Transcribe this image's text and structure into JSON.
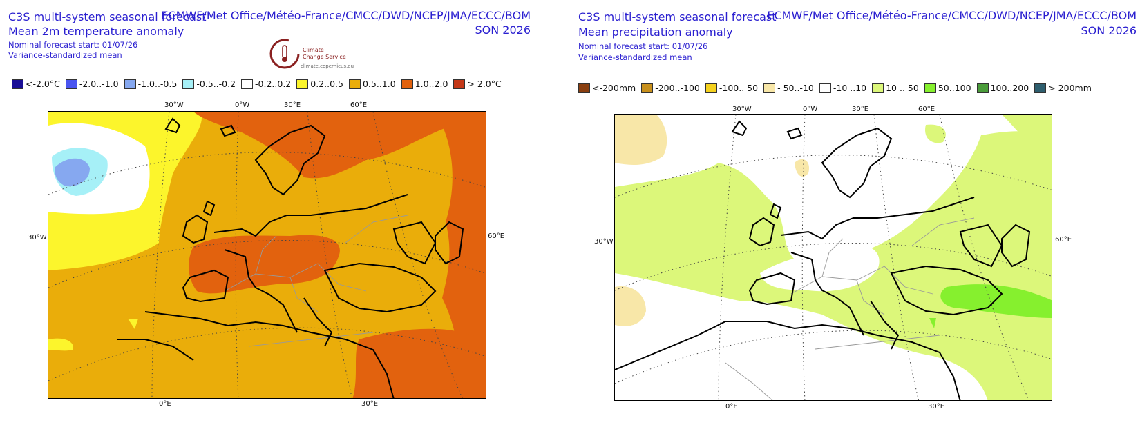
{
  "left": {
    "title_line1": "C3S multi-system seasonal forecast",
    "title_line2": "Mean 2m temperature anomaly",
    "start": "Nominal forecast start: 01/07/26",
    "method": "Variance-standardized mean",
    "providers": "ECMWF/Met Office/Météo-France/CMCC/DWD/NCEP/JMA/ECCC/BOM",
    "season": "SON 2026",
    "logo_line1": "Climate",
    "logo_line2": "Change Service",
    "logo_url": "climate.copernicus.eu",
    "legend": [
      {
        "label": "<-2.0°C",
        "color": "#1a0f96"
      },
      {
        "label": "-2.0..-1.0",
        "color": "#4a55f0"
      },
      {
        "label": "-1.0..-0.5",
        "color": "#86a8f0"
      },
      {
        "label": "-0.5..-0.2",
        "color": "#a6f0f7"
      },
      {
        "label": "-0.2..0.2",
        "color": "#ffffff"
      },
      {
        "label": "0.2..0.5",
        "color": "#fcf52c"
      },
      {
        "label": "0.5..1.0",
        "color": "#eaad0a"
      },
      {
        "label": "1.0..2.0",
        "color": "#e2620e"
      },
      {
        "label": "> 2.0°C",
        "color": "#c43818"
      }
    ],
    "lon_top": [
      "30°W",
      "0°W",
      "30°E",
      "60°E"
    ],
    "lon_bottom": [
      "0°E",
      "30°E"
    ],
    "lat_left": "30°W",
    "lat_right": "60°E"
  },
  "right": {
    "title_line1": "C3S multi-system seasonal forecast",
    "title_line2": "Mean precipitation anomaly",
    "start": "Nominal forecast start: 01/07/26",
    "method": "Variance-standardized mean",
    "providers": "ECMWF/Met Office/Météo-France/CMCC/DWD/NCEP/JMA/ECCC/BOM",
    "season": "SON 2026",
    "legend": [
      {
        "label": "<-200mm",
        "color": "#8a3f10"
      },
      {
        "label": "-200..-100",
        "color": "#c8901c"
      },
      {
        "label": "-100.. 50",
        "color": "#f5d21e"
      },
      {
        "label": "- 50..-10",
        "color": "#f8e7a8"
      },
      {
        "label": "-10 ..10",
        "color": "#ffffff"
      },
      {
        "label": "10 .. 50",
        "color": "#dcf77a"
      },
      {
        "label": "50..100",
        "color": "#86f02e"
      },
      {
        "label": "100..200",
        "color": "#4a9c3a"
      },
      {
        "label": "> 200mm",
        "color": "#2e5e6e"
      }
    ],
    "lon_top": [
      "30°W",
      "0°W",
      "30°E",
      "60°E"
    ],
    "lon_bottom": [
      "0°E",
      "30°E"
    ],
    "lat_left": "30°W",
    "lat_right": "60°E"
  }
}
